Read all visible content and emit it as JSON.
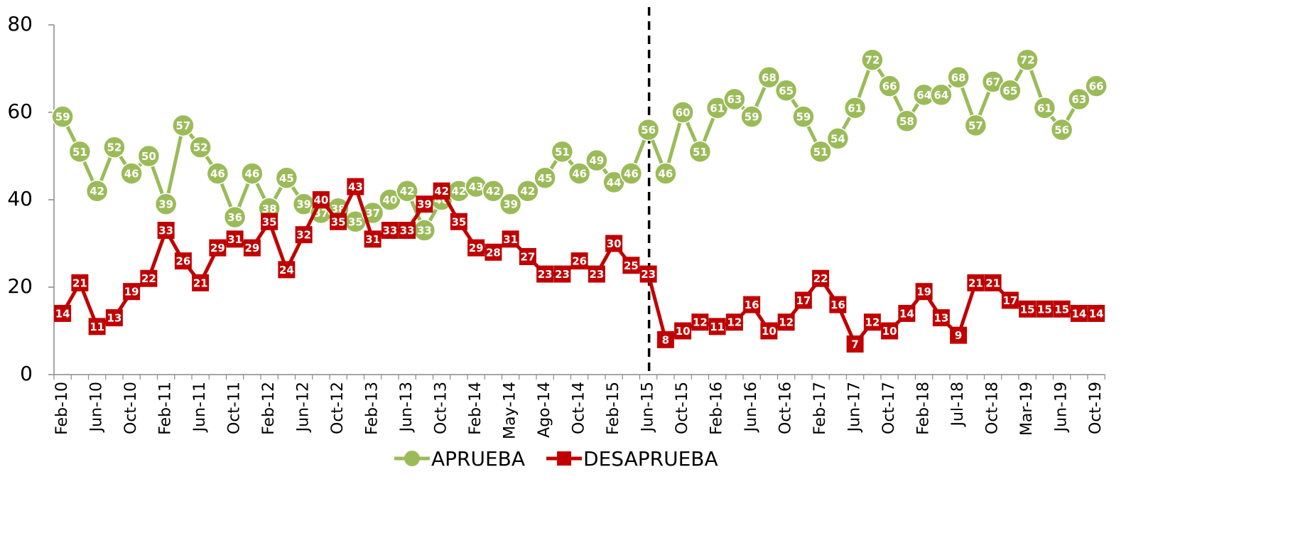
{
  "chart_data": {
    "type": "line",
    "categories": [
      "Feb-10",
      null,
      "Jun-10",
      null,
      "Oct-10",
      null,
      "Feb-11",
      null,
      "Jun-11",
      null,
      "Oct-11",
      null,
      "Feb-12",
      null,
      "Jun-12",
      null,
      "Oct-12",
      null,
      "Feb-13",
      null,
      "Jun-13",
      null,
      "Oct-13",
      null,
      "Feb-14",
      null,
      "May-14",
      null,
      "Ago-14",
      null,
      "Oct-14",
      null,
      "Feb-15",
      null,
      "Jun-15",
      null,
      "Oct-15",
      null,
      "Feb-16",
      null,
      "Jun-16",
      null,
      "Oct-16",
      null,
      "Feb-17",
      null,
      "Jun-17",
      null,
      "Oct-17",
      null,
      "Feb-18",
      null,
      "Jul-18",
      null,
      "Oct-18",
      null,
      "Mar-19",
      null,
      "Jun-19",
      null,
      "Oct-19"
    ],
    "series": [
      {
        "name": "APRUEBA",
        "color": "#9bbb59",
        "marker": "circle",
        "values": [
          59,
          51,
          42,
          52,
          46,
          50,
          39,
          57,
          52,
          46,
          36,
          46,
          38,
          45,
          39,
          37,
          38,
          35,
          37,
          40,
          42,
          33,
          40,
          42,
          43,
          42,
          39,
          42,
          45,
          51,
          46,
          49,
          44,
          46,
          56,
          46,
          60,
          51,
          61,
          63,
          59,
          68,
          65,
          59,
          51,
          54,
          61,
          72,
          66,
          58,
          64,
          64,
          68,
          57,
          67,
          65,
          72,
          61,
          56,
          63,
          66
        ]
      },
      {
        "name": "DESAPRUEBA",
        "color": "#c00000",
        "marker": "square",
        "values": [
          14,
          21,
          11,
          13,
          19,
          22,
          33,
          26,
          21,
          29,
          31,
          29,
          35,
          24,
          32,
          40,
          35,
          43,
          31,
          33,
          33,
          39,
          42,
          35,
          29,
          28,
          31,
          27,
          23,
          23,
          26,
          23,
          30,
          25,
          23,
          8,
          10,
          12,
          11,
          12,
          16,
          10,
          12,
          17,
          22,
          16,
          7,
          12,
          10,
          14,
          19,
          13,
          9,
          21,
          21,
          17,
          15,
          15,
          15,
          14,
          14
        ]
      }
    ],
    "ylim": [
      0,
      80
    ],
    "yticks": [
      0,
      20,
      40,
      60,
      80
    ],
    "reference_line": {
      "x": "Jun-15",
      "style": "dashed"
    },
    "legend": "bottom",
    "grid": false
  }
}
